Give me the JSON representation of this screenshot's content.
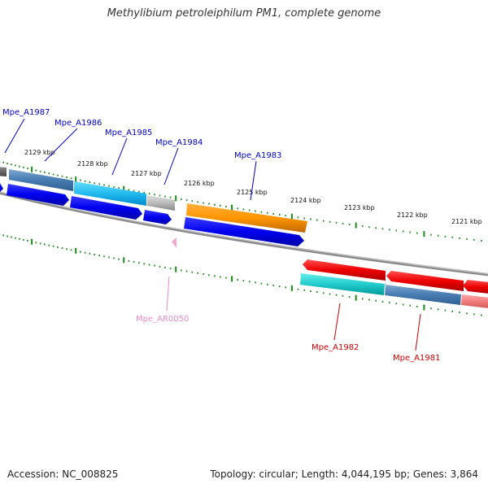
{
  "title": "Methylibium petroleiphilum PM1, complete genome",
  "footer": {
    "accession": "Accession: NC_008825",
    "summary": "Topology: circular; Length: 4,044,195 bp; Genes: 3,864"
  },
  "ruler_ticks": [
    "2129 kbp",
    "2128 kbp",
    "2127 kbp",
    "2126 kbp",
    "2125 kbp",
    "2124 kbp",
    "2123 kbp",
    "2122 kbp",
    "2121 kbp"
  ],
  "gene_labels": {
    "a1987": "Mpe_A1987",
    "a1986": "Mpe_A1986",
    "a1985": "Mpe_A1985",
    "a1984": "Mpe_A1984",
    "a1983": "Mpe_A1983",
    "ar0050": "Mpe_AR0050",
    "a1982": "Mpe_A1982",
    "a1981": "Mpe_A1981"
  },
  "colors": {
    "forward_label": "#0000c8",
    "reverse_label": "#cc0000",
    "rna_label": "#ee88cc",
    "tick": "#1a8a1a",
    "backbone": "#808080"
  }
}
